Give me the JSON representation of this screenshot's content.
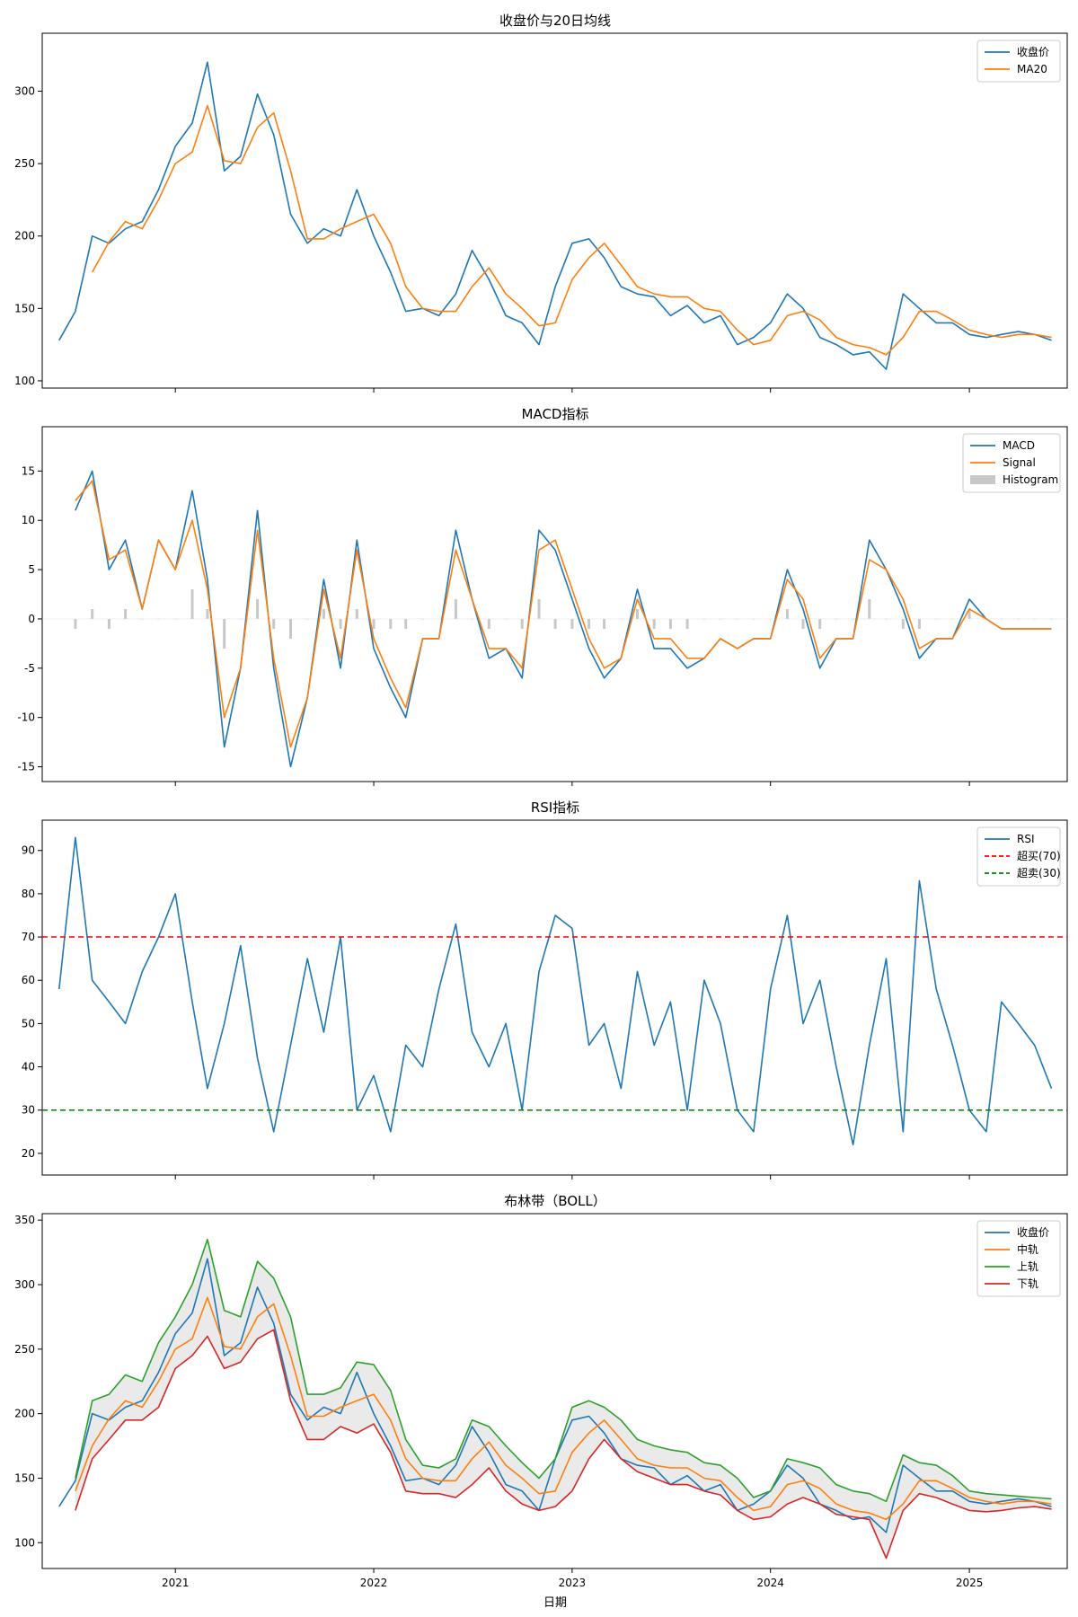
{
  "figure": {
    "xlabel": "日期",
    "x_tick_labels": [
      "2021",
      "2022",
      "2023",
      "2024",
      "2025"
    ],
    "x_range": [
      "2020-05-01",
      "2025-06-30"
    ]
  },
  "colors": {
    "blue": "#1f77b4",
    "orange": "#ff7f0e",
    "green": "#2ca02c",
    "red": "#d62728",
    "gray": "#c8c8c8",
    "band_fill": "#e6e6e6",
    "overbought_line": "#ff0000",
    "oversold_line": "#008000"
  },
  "chart_data": [
    {
      "type": "line",
      "title": "收盘价与20日均线",
      "xlabel": "",
      "ylabel": "",
      "ylim": [
        95,
        340
      ],
      "yticks": [
        100,
        150,
        200,
        250,
        300
      ],
      "legend_position": "upper right",
      "grid": false,
      "x": [
        "2020-06-01",
        "2020-07-01",
        "2020-08-01",
        "2020-09-01",
        "2020-10-01",
        "2020-11-01",
        "2020-12-01",
        "2021-01-01",
        "2021-02-01",
        "2021-03-01",
        "2021-04-01",
        "2021-05-01",
        "2021-06-01",
        "2021-07-01",
        "2021-08-01",
        "2021-09-01",
        "2021-10-01",
        "2021-11-01",
        "2021-12-01",
        "2022-01-01",
        "2022-02-01",
        "2022-03-01",
        "2022-04-01",
        "2022-05-01",
        "2022-06-01",
        "2022-07-01",
        "2022-08-01",
        "2022-09-01",
        "2022-10-01",
        "2022-11-01",
        "2022-12-01",
        "2023-01-01",
        "2023-02-01",
        "2023-03-01",
        "2023-04-01",
        "2023-05-01",
        "2023-06-01",
        "2023-07-01",
        "2023-08-01",
        "2023-09-01",
        "2023-10-01",
        "2023-11-01",
        "2023-12-01",
        "2024-01-01",
        "2024-02-01",
        "2024-03-01",
        "2024-04-01",
        "2024-05-01",
        "2024-06-01",
        "2024-07-01",
        "2024-08-01",
        "2024-09-01",
        "2024-10-01",
        "2024-11-01",
        "2024-12-01",
        "2025-01-01",
        "2025-02-01",
        "2025-03-01",
        "2025-04-01",
        "2025-05-01",
        "2025-06-01"
      ],
      "series": [
        {
          "name": "收盘价",
          "color": "#1f77b4",
          "values": [
            128,
            148,
            200,
            195,
            205,
            210,
            232,
            262,
            278,
            320,
            245,
            255,
            298,
            270,
            215,
            195,
            205,
            200,
            232,
            200,
            175,
            148,
            150,
            145,
            160,
            190,
            170,
            145,
            140,
            125,
            165,
            195,
            198,
            185,
            165,
            160,
            158,
            145,
            152,
            140,
            145,
            125,
            130,
            140,
            160,
            150,
            130,
            125,
            118,
            120,
            108,
            160,
            150,
            140,
            140,
            132,
            130,
            132,
            134,
            132,
            128
          ]
        },
        {
          "name": "MA20",
          "color": "#ff7f0e",
          "values": [
            null,
            null,
            175,
            196,
            210,
            205,
            225,
            250,
            258,
            290,
            252,
            250,
            275,
            285,
            245,
            198,
            198,
            205,
            210,
            215,
            195,
            165,
            150,
            148,
            148,
            165,
            178,
            160,
            150,
            138,
            140,
            170,
            185,
            195,
            180,
            165,
            160,
            158,
            158,
            150,
            148,
            135,
            125,
            128,
            145,
            148,
            142,
            130,
            125,
            123,
            118,
            130,
            148,
            148,
            142,
            135,
            132,
            130,
            132,
            132,
            130
          ]
        }
      ]
    },
    {
      "type": "line",
      "title": "MACD指标",
      "xlabel": "",
      "ylabel": "",
      "ylim": [
        -16.5,
        19.5
      ],
      "yticks": [
        -15,
        -10,
        -5,
        0,
        5,
        10,
        15
      ],
      "legend_position": "upper right",
      "grid": false,
      "x": [
        "2020-07-01",
        "2020-08-01",
        "2020-09-01",
        "2020-10-01",
        "2020-11-01",
        "2020-12-01",
        "2021-01-01",
        "2021-02-01",
        "2021-03-01",
        "2021-04-01",
        "2021-05-01",
        "2021-06-01",
        "2021-07-01",
        "2021-08-01",
        "2021-09-01",
        "2021-10-01",
        "2021-11-01",
        "2021-12-01",
        "2022-01-01",
        "2022-02-01",
        "2022-03-01",
        "2022-04-01",
        "2022-05-01",
        "2022-06-01",
        "2022-07-01",
        "2022-08-01",
        "2022-09-01",
        "2022-10-01",
        "2022-11-01",
        "2022-12-01",
        "2023-01-01",
        "2023-02-01",
        "2023-03-01",
        "2023-04-01",
        "2023-05-01",
        "2023-06-01",
        "2023-07-01",
        "2023-08-01",
        "2023-09-01",
        "2023-10-01",
        "2023-11-01",
        "2023-12-01",
        "2024-01-01",
        "2024-02-01",
        "2024-03-01",
        "2024-04-01",
        "2024-05-01",
        "2024-06-01",
        "2024-07-01",
        "2024-08-01",
        "2024-09-01",
        "2024-10-01",
        "2024-11-01",
        "2024-12-01",
        "2025-01-01",
        "2025-02-01",
        "2025-03-01",
        "2025-04-01",
        "2025-05-01",
        "2025-06-01"
      ],
      "series": [
        {
          "name": "MACD",
          "color": "#1f77b4",
          "values": [
            11,
            15,
            5,
            8,
            1,
            8,
            5,
            13,
            4,
            -13,
            -5,
            11,
            -5,
            -15,
            -8,
            4,
            -5,
            8,
            -3,
            -7,
            -10,
            -2,
            -2,
            9,
            2,
            -4,
            -3,
            -6,
            9,
            7,
            2,
            -3,
            -6,
            -4,
            3,
            -3,
            -3,
            -5,
            -4,
            -2,
            -3,
            -2,
            -2,
            5,
            1,
            -5,
            -2,
            -2,
            8,
            5,
            1,
            -4,
            -2,
            -2,
            2,
            0,
            -1,
            -1,
            -1,
            -1
          ]
        },
        {
          "name": "Signal",
          "color": "#ff7f0e",
          "values": [
            12,
            14,
            6,
            7,
            1,
            8,
            5,
            10,
            3,
            -10,
            -5,
            9,
            -4,
            -13,
            -8,
            3,
            -4,
            7,
            -2,
            -6,
            -9,
            -2,
            -2,
            7,
            2,
            -3,
            -3,
            -5,
            7,
            8,
            3,
            -2,
            -5,
            -4,
            2,
            -2,
            -2,
            -4,
            -4,
            -2,
            -3,
            -2,
            -2,
            4,
            2,
            -4,
            -2,
            -2,
            6,
            5,
            2,
            -3,
            -2,
            -2,
            1,
            0,
            -1,
            -1,
            -1,
            -1
          ]
        },
        {
          "name": "Histogram",
          "color": "#c8c8c8",
          "type": "bar",
          "values": [
            -1,
            1,
            -1,
            1,
            0,
            0,
            0,
            3,
            1,
            -3,
            0,
            2,
            -1,
            -2,
            0,
            1,
            -1,
            1,
            -1,
            -1,
            -1,
            0,
            0,
            2,
            0,
            -1,
            0,
            -1,
            2,
            -1,
            -1,
            -1,
            -1,
            0,
            1,
            -1,
            -1,
            -1,
            0,
            0,
            0,
            0,
            0,
            1,
            -1,
            -1,
            0,
            0,
            2,
            0,
            -1,
            -1,
            0,
            0,
            1,
            0,
            0,
            0,
            0,
            0
          ]
        }
      ]
    },
    {
      "type": "line",
      "title": "RSI指标",
      "xlabel": "",
      "ylabel": "",
      "ylim": [
        15,
        97
      ],
      "yticks": [
        20,
        30,
        40,
        50,
        60,
        70,
        80,
        90
      ],
      "legend_position": "upper right",
      "grid": false,
      "x": [
        "2020-06-01",
        "2020-07-01",
        "2020-08-01",
        "2020-09-01",
        "2020-10-01",
        "2020-11-01",
        "2020-12-01",
        "2021-01-01",
        "2021-02-01",
        "2021-03-01",
        "2021-04-01",
        "2021-05-01",
        "2021-06-01",
        "2021-07-01",
        "2021-08-01",
        "2021-09-01",
        "2021-10-01",
        "2021-11-01",
        "2021-12-01",
        "2022-01-01",
        "2022-02-01",
        "2022-03-01",
        "2022-04-01",
        "2022-05-01",
        "2022-06-01",
        "2022-07-01",
        "2022-08-01",
        "2022-09-01",
        "2022-10-01",
        "2022-11-01",
        "2022-12-01",
        "2023-01-01",
        "2023-02-01",
        "2023-03-01",
        "2023-04-01",
        "2023-05-01",
        "2023-06-01",
        "2023-07-01",
        "2023-08-01",
        "2023-09-01",
        "2023-10-01",
        "2023-11-01",
        "2023-12-01",
        "2024-01-01",
        "2024-02-01",
        "2024-03-01",
        "2024-04-01",
        "2024-05-01",
        "2024-06-01",
        "2024-07-01",
        "2024-08-01",
        "2024-09-01",
        "2024-10-01",
        "2024-11-01",
        "2024-12-01",
        "2025-01-01",
        "2025-02-01",
        "2025-03-01",
        "2025-04-01",
        "2025-05-01",
        "2025-06-01"
      ],
      "series": [
        {
          "name": "RSI",
          "color": "#1f77b4",
          "values": [
            58,
            93,
            60,
            55,
            50,
            62,
            70,
            80,
            55,
            35,
            50,
            68,
            42,
            25,
            45,
            65,
            48,
            70,
            30,
            38,
            25,
            45,
            40,
            58,
            73,
            48,
            40,
            50,
            30,
            62,
            75,
            72,
            45,
            50,
            35,
            62,
            45,
            55,
            30,
            60,
            50,
            30,
            25,
            58,
            75,
            50,
            60,
            40,
            22,
            45,
            65,
            25,
            83,
            58,
            45,
            30,
            25,
            55,
            50,
            45,
            35
          ]
        },
        {
          "name": "超买(70)",
          "color": "#ff0000",
          "dashed": true,
          "value": 70
        },
        {
          "name": "超卖(30)",
          "color": "#008000",
          "dashed": true,
          "value": 30
        }
      ]
    },
    {
      "type": "area",
      "title": "布林带（BOLL）",
      "xlabel": "日期",
      "ylabel": "",
      "ylim": [
        80,
        355
      ],
      "yticks": [
        100,
        150,
        200,
        250,
        300,
        350
      ],
      "legend_position": "upper right",
      "grid": false,
      "x": [
        "2020-06-01",
        "2020-07-01",
        "2020-08-01",
        "2020-09-01",
        "2020-10-01",
        "2020-11-01",
        "2020-12-01",
        "2021-01-01",
        "2021-02-01",
        "2021-03-01",
        "2021-04-01",
        "2021-05-01",
        "2021-06-01",
        "2021-07-01",
        "2021-08-01",
        "2021-09-01",
        "2021-10-01",
        "2021-11-01",
        "2021-12-01",
        "2022-01-01",
        "2022-02-01",
        "2022-03-01",
        "2022-04-01",
        "2022-05-01",
        "2022-06-01",
        "2022-07-01",
        "2022-08-01",
        "2022-09-01",
        "2022-10-01",
        "2022-11-01",
        "2022-12-01",
        "2023-01-01",
        "2023-02-01",
        "2023-03-01",
        "2023-04-01",
        "2023-05-01",
        "2023-06-01",
        "2023-07-01",
        "2023-08-01",
        "2023-09-01",
        "2023-10-01",
        "2023-11-01",
        "2023-12-01",
        "2024-01-01",
        "2024-02-01",
        "2024-03-01",
        "2024-04-01",
        "2024-05-01",
        "2024-06-01",
        "2024-07-01",
        "2024-08-01",
        "2024-09-01",
        "2024-10-01",
        "2024-11-01",
        "2024-12-01",
        "2025-01-01",
        "2025-02-01",
        "2025-03-01",
        "2025-04-01",
        "2025-05-01",
        "2025-06-01"
      ],
      "series": [
        {
          "name": "收盘价",
          "color": "#1f77b4",
          "values": [
            128,
            148,
            200,
            195,
            205,
            210,
            232,
            262,
            278,
            320,
            245,
            255,
            298,
            270,
            215,
            195,
            205,
            200,
            232,
            200,
            175,
            148,
            150,
            145,
            160,
            190,
            170,
            145,
            140,
            125,
            165,
            195,
            198,
            185,
            165,
            160,
            158,
            145,
            152,
            140,
            145,
            125,
            130,
            140,
            160,
            150,
            130,
            125,
            118,
            120,
            108,
            160,
            150,
            140,
            140,
            132,
            130,
            132,
            134,
            132,
            128
          ]
        },
        {
          "name": "中轨",
          "color": "#ff7f0e",
          "values": [
            null,
            140,
            175,
            196,
            210,
            205,
            225,
            250,
            258,
            290,
            252,
            250,
            275,
            285,
            245,
            198,
            198,
            205,
            210,
            215,
            195,
            165,
            150,
            148,
            148,
            165,
            178,
            160,
            150,
            138,
            140,
            170,
            185,
            195,
            180,
            165,
            160,
            158,
            158,
            150,
            148,
            135,
            125,
            128,
            145,
            148,
            142,
            130,
            125,
            123,
            118,
            130,
            148,
            148,
            142,
            135,
            132,
            130,
            132,
            132,
            130
          ]
        },
        {
          "name": "上轨",
          "color": "#2ca02c",
          "values": [
            null,
            150,
            210,
            215,
            230,
            225,
            255,
            275,
            300,
            335,
            280,
            275,
            318,
            305,
            275,
            215,
            215,
            220,
            240,
            238,
            218,
            180,
            160,
            158,
            165,
            195,
            190,
            175,
            162,
            150,
            165,
            205,
            210,
            205,
            195,
            180,
            175,
            172,
            170,
            162,
            160,
            150,
            135,
            140,
            165,
            162,
            158,
            145,
            140,
            138,
            132,
            168,
            162,
            160,
            152,
            140,
            138,
            137,
            136,
            135,
            134
          ]
        },
        {
          "name": "下轨",
          "color": "#d62728",
          "values": [
            null,
            125,
            165,
            180,
            195,
            195,
            205,
            235,
            245,
            260,
            235,
            240,
            258,
            265,
            210,
            180,
            180,
            190,
            185,
            192,
            170,
            140,
            138,
            138,
            135,
            145,
            158,
            140,
            130,
            125,
            128,
            140,
            165,
            180,
            165,
            155,
            150,
            145,
            145,
            140,
            137,
            125,
            118,
            120,
            130,
            135,
            130,
            122,
            120,
            118,
            88,
            125,
            138,
            135,
            130,
            125,
            124,
            125,
            127,
            128,
            126
          ]
        }
      ]
    }
  ]
}
